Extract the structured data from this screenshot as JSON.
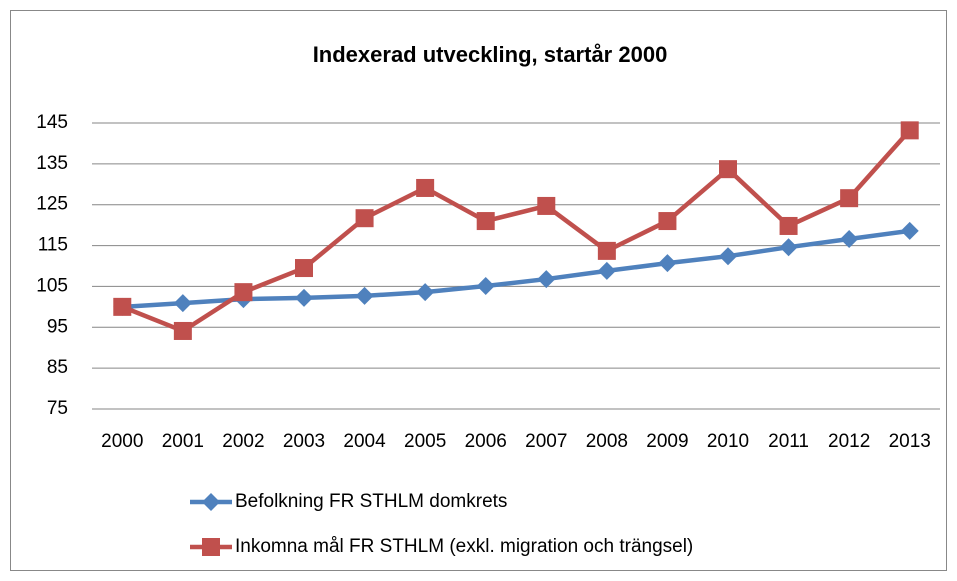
{
  "chart_data": {
    "type": "line",
    "title": "Indexerad utveckling, startår 2000",
    "categories": [
      "2000",
      "2001",
      "2002",
      "2003",
      "2004",
      "2005",
      "2006",
      "2007",
      "2008",
      "2009",
      "2010",
      "2011",
      "2012",
      "2013"
    ],
    "series": [
      {
        "name": "Befolkning FR STHLM domkrets",
        "color": "#4f81bd",
        "marker": "diamond",
        "values": [
          100,
          100.9,
          101.9,
          102.2,
          102.7,
          103.6,
          105.1,
          106.8,
          108.8,
          110.7,
          112.4,
          114.6,
          116.6,
          118.6
        ]
      },
      {
        "name": "Inkomna mål FR STHLM (exkl. migration och trängsel)",
        "color": "#c0504d",
        "marker": "square",
        "values": [
          100,
          94.1,
          103.6,
          109.5,
          121.7,
          129.1,
          121,
          124.7,
          113.7,
          121,
          133.7,
          119.8,
          126.6,
          143.2
        ]
      }
    ],
    "ylim": [
      75,
      145
    ],
    "yticks": [
      75,
      85,
      95,
      105,
      115,
      125,
      135,
      145
    ],
    "grid": true,
    "legend": "bottom"
  }
}
